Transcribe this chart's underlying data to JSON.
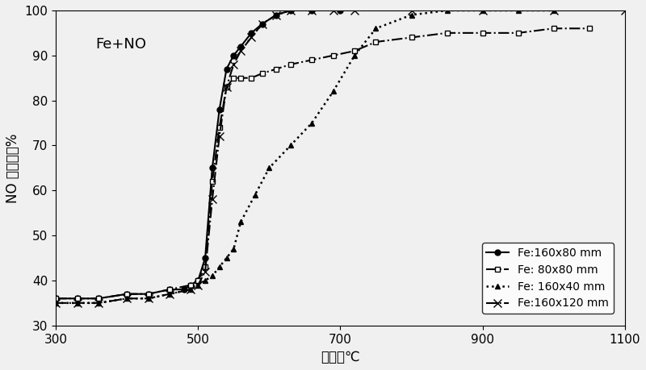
{
  "title_annotation": "Fe+NO",
  "xlabel": "温度，℃",
  "ylabel": "NO 脱除率，%",
  "xlim": [
    300,
    1100
  ],
  "ylim": [
    30,
    100
  ],
  "xticks": [
    300,
    500,
    700,
    900,
    1100
  ],
  "yticks": [
    30,
    40,
    50,
    60,
    70,
    80,
    90,
    100
  ],
  "series": [
    {
      "label": "Fe:160x80 mm",
      "linestyle": "-",
      "marker": "o",
      "markersize": 5,
      "markerfacecolor": "black",
      "markeredgecolor": "black",
      "color": "black",
      "linewidth": 1.5,
      "x": [
        300,
        330,
        360,
        400,
        430,
        460,
        480,
        490,
        500,
        510,
        520,
        530,
        540,
        550,
        560,
        575,
        590,
        610,
        630,
        660,
        700
      ],
      "y": [
        36,
        36,
        36,
        37,
        37,
        38,
        38,
        39,
        40,
        45,
        65,
        78,
        87,
        90,
        92,
        95,
        97,
        99,
        100,
        100,
        100
      ]
    },
    {
      "label": "Fe: 80x80 mm",
      "linestyle": "-.",
      "marker": "s",
      "markersize": 5,
      "markerfacecolor": "white",
      "markeredgecolor": "black",
      "color": "black",
      "linewidth": 1.5,
      "x": [
        300,
        330,
        360,
        400,
        430,
        460,
        490,
        500,
        510,
        520,
        530,
        540,
        550,
        560,
        575,
        590,
        610,
        630,
        660,
        690,
        720,
        750,
        800,
        850,
        900,
        950,
        1000,
        1050
      ],
      "y": [
        36,
        36,
        36,
        37,
        37,
        38,
        39,
        40,
        43,
        62,
        74,
        83,
        85,
        85,
        85,
        86,
        87,
        88,
        89,
        90,
        91,
        93,
        94,
        95,
        95,
        95,
        96,
        96
      ]
    },
    {
      "label": "Fe: 160x40 mm",
      "linestyle": ":",
      "marker": "^",
      "markersize": 5,
      "markerfacecolor": "black",
      "markeredgecolor": "black",
      "color": "black",
      "linewidth": 1.8,
      "x": [
        300,
        330,
        360,
        400,
        430,
        460,
        490,
        500,
        510,
        520,
        530,
        540,
        550,
        560,
        580,
        600,
        630,
        660,
        690,
        720,
        750,
        800,
        850,
        900,
        950,
        1000
      ],
      "y": [
        35,
        35,
        35,
        36,
        36,
        37,
        38,
        39,
        40,
        41,
        43,
        45,
        47,
        53,
        59,
        65,
        70,
        75,
        82,
        90,
        96,
        99,
        100,
        100,
        100,
        100
      ]
    },
    {
      "label": "Fe:160x120 mm",
      "linestyle": "-.",
      "marker": "x",
      "markersize": 7,
      "markerfacecolor": "black",
      "markeredgecolor": "black",
      "color": "black",
      "linewidth": 1.5,
      "x": [
        300,
        330,
        360,
        400,
        430,
        460,
        490,
        500,
        510,
        520,
        530,
        540,
        550,
        560,
        575,
        590,
        610,
        630,
        660,
        690,
        720,
        800,
        900,
        1000,
        1100
      ],
      "y": [
        35,
        35,
        35,
        36,
        36,
        37,
        38,
        39,
        42,
        58,
        72,
        83,
        88,
        91,
        94,
        97,
        99,
        100,
        100,
        100,
        100,
        100,
        100,
        100,
        100
      ]
    }
  ],
  "background_color": "#f0f0f0",
  "fontsize_label": 12,
  "fontsize_tick": 11,
  "fontsize_annotation": 13,
  "fontsize_legend": 10
}
